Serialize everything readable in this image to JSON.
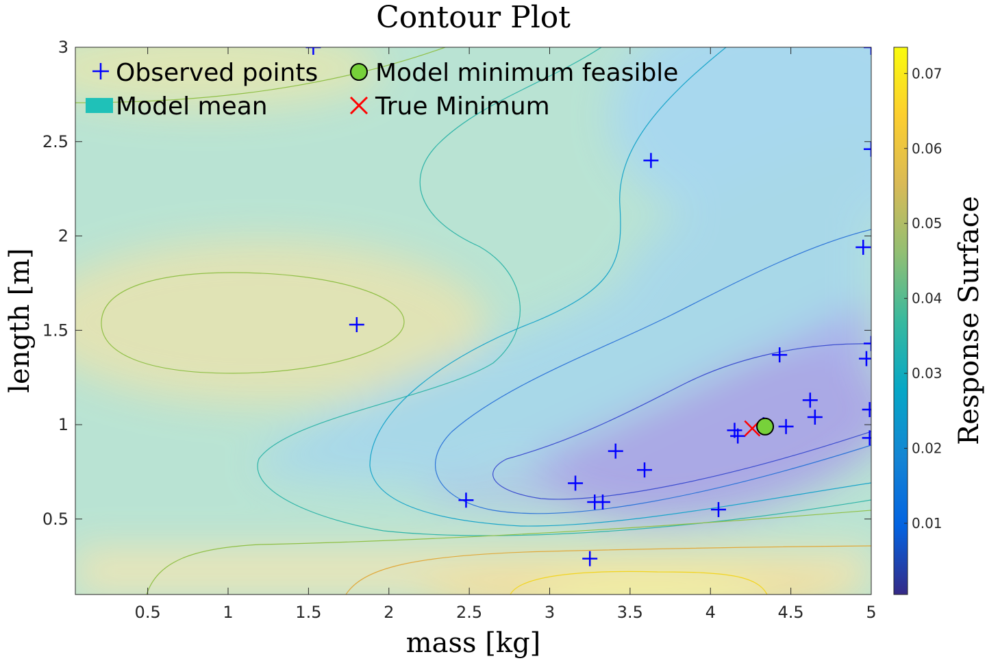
{
  "chart_data": {
    "type": "contour",
    "title": "Contour Plot",
    "xlabel": "mass [kg]",
    "ylabel": "length [m]",
    "colorbar_label": "Response Surface",
    "xlim": [
      0.05,
      5.0
    ],
    "ylim": [
      0.1,
      3.0
    ],
    "xticks": [
      0.5,
      1,
      1.5,
      2,
      2.5,
      3,
      3.5,
      4,
      4.5,
      5
    ],
    "xtick_labels": [
      "0.5",
      "1",
      "1.5",
      "2",
      "2.5",
      "3",
      "3.5",
      "4",
      "4.5",
      "5"
    ],
    "yticks": [
      0.5,
      1,
      1.5,
      2,
      2.5,
      3
    ],
    "ytick_labels": [
      "0.5",
      "1",
      "1.5",
      "2",
      "2.5",
      "3"
    ],
    "colorbar_range": [
      0.0005,
      0.0735
    ],
    "colorbar_ticks": [
      0.01,
      0.02,
      0.03,
      0.04,
      0.05,
      0.06,
      0.07
    ],
    "colorbar_tick_labels": [
      "0.01",
      "0.02",
      "0.03",
      "0.04",
      "0.05",
      "0.06",
      "0.07"
    ],
    "colormap": "parula",
    "legend": {
      "location": "top-left",
      "entries": [
        {
          "label": "Observed points",
          "marker": "plus",
          "color": "#0000ff"
        },
        {
          "label": "Model minimum feasible",
          "marker": "circle",
          "color": "#77d13a"
        },
        {
          "label": "Model mean",
          "marker": "patch",
          "color": "#1fc1b8"
        },
        {
          "label": "True Minimum",
          "marker": "x",
          "color": "#ff0000"
        }
      ]
    },
    "observed_points": [
      [
        1.53,
        3.0
      ],
      [
        5.0,
        3.0
      ],
      [
        5.0,
        2.46
      ],
      [
        3.63,
        2.4
      ],
      [
        4.95,
        1.94
      ],
      [
        1.8,
        1.53
      ],
      [
        5.0,
        1.43
      ],
      [
        4.97,
        1.35
      ],
      [
        4.43,
        1.37
      ],
      [
        4.62,
        1.13
      ],
      [
        4.65,
        1.04
      ],
      [
        4.99,
        1.08
      ],
      [
        4.47,
        0.99
      ],
      [
        4.33,
        1.0
      ],
      [
        4.15,
        0.97
      ],
      [
        4.17,
        0.94
      ],
      [
        4.99,
        0.93
      ],
      [
        3.41,
        0.86
      ],
      [
        3.59,
        0.76
      ],
      [
        3.16,
        0.69
      ],
      [
        2.48,
        0.6
      ],
      [
        3.28,
        0.59
      ],
      [
        3.33,
        0.59
      ],
      [
        4.05,
        0.55
      ],
      [
        3.25,
        0.29
      ]
    ],
    "model_minimum_feasible": [
      4.34,
      0.99
    ],
    "true_minimum": [
      4.26,
      0.98
    ]
  }
}
